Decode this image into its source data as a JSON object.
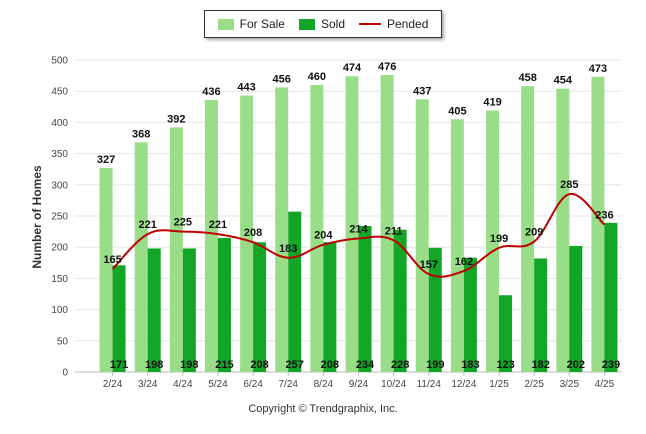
{
  "chart_data": {
    "type": "bar",
    "categories": [
      "2/24",
      "3/24",
      "4/24",
      "5/24",
      "6/24",
      "7/24",
      "8/24",
      "9/24",
      "10/24",
      "11/24",
      "12/24",
      "1/25",
      "2/25",
      "3/25",
      "4/25"
    ],
    "series": [
      {
        "name": "For Sale",
        "type": "bar",
        "color": "#99dd88",
        "values": [
          327,
          368,
          392,
          436,
          443,
          456,
          460,
          474,
          476,
          437,
          405,
          419,
          458,
          454,
          473
        ]
      },
      {
        "name": "Sold",
        "type": "bar",
        "color": "#12a626",
        "values": [
          171,
          198,
          198,
          215,
          208,
          257,
          208,
          234,
          228,
          199,
          183,
          123,
          182,
          202,
          239
        ]
      },
      {
        "name": "Pended",
        "type": "line",
        "color": "#c00000",
        "values": [
          165,
          221,
          225,
          221,
          208,
          183,
          204,
          214,
          211,
          157,
          162,
          199,
          209,
          285,
          236
        ]
      }
    ],
    "ylabel": "Number of Homes",
    "xlabel": "",
    "ylim": [
      0,
      500
    ],
    "yticks": [
      0,
      50,
      100,
      150,
      200,
      250,
      300,
      350,
      400,
      450,
      500
    ],
    "grid": true,
    "legend": "top-center"
  },
  "footer": "Copyright © Trendgraphix, Inc."
}
